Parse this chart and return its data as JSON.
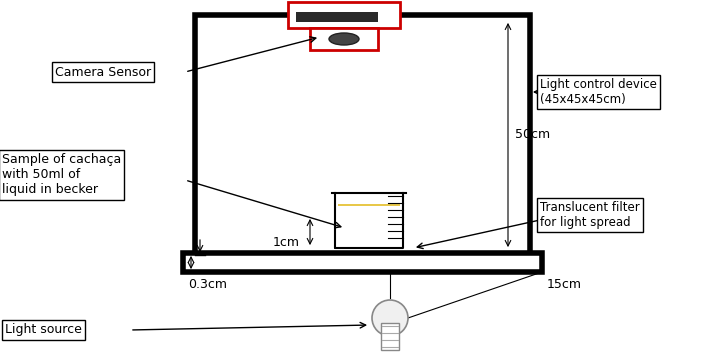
{
  "fig_width": 7.19,
  "fig_height": 3.56,
  "bg_color": "#ffffff",
  "box_color": "#000000",
  "red_color": "#cc0000",
  "yellow_color": "#e8c84a",
  "label_camera": "Camera Sensor",
  "label_light_ctrl": "Light control device\n(45x45x45cm)",
  "label_cachaca": "Sample of cachaça\nwith 50ml of\nliquid in becker",
  "label_filter": "Translucent filter\nfor light spread",
  "label_light_src": "Light source",
  "dim_50cm": "50cm",
  "dim_1cm": "1cm",
  "dim_03cm": "0.3cm",
  "dim_15cm": "15cm"
}
